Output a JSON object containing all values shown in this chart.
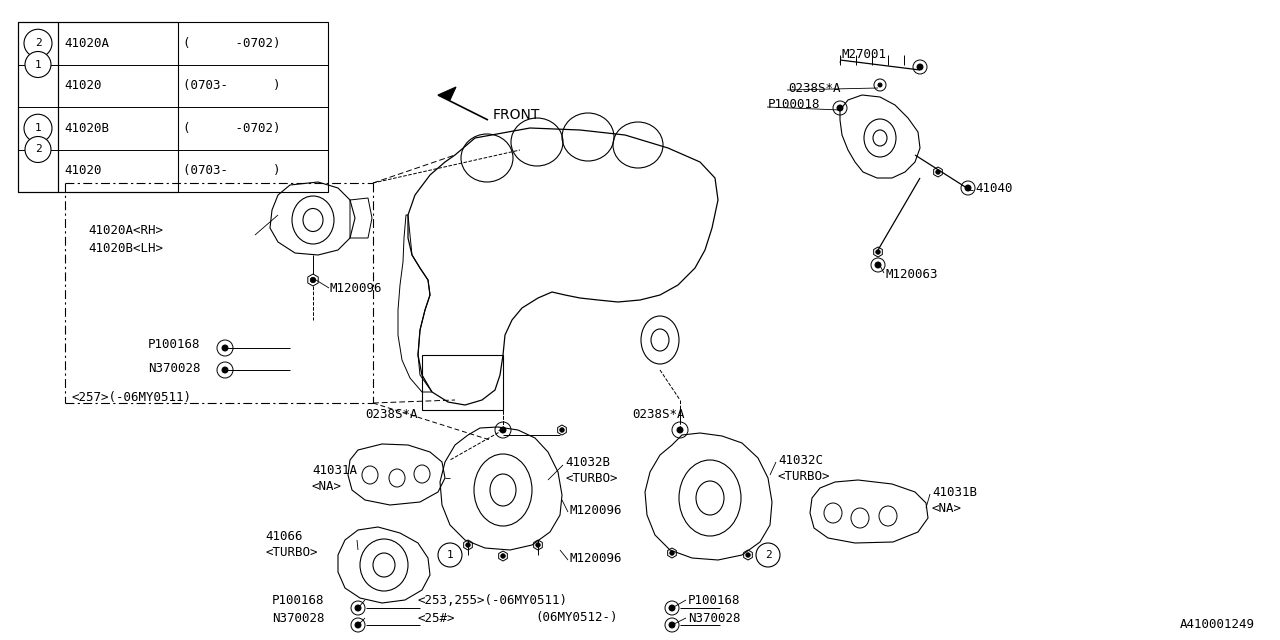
{
  "bg_color": "#ffffff",
  "part_number": "A410001249",
  "table_rows": [
    [
      "1",
      "41020A",
      "(      -0702)"
    ],
    [
      "1",
      "41020",
      "(0703-     )"
    ],
    [
      "2",
      "41020B",
      "(      -0702)"
    ],
    [
      "2",
      "41020",
      "(0703-     )"
    ]
  ],
  "font_size": 9
}
